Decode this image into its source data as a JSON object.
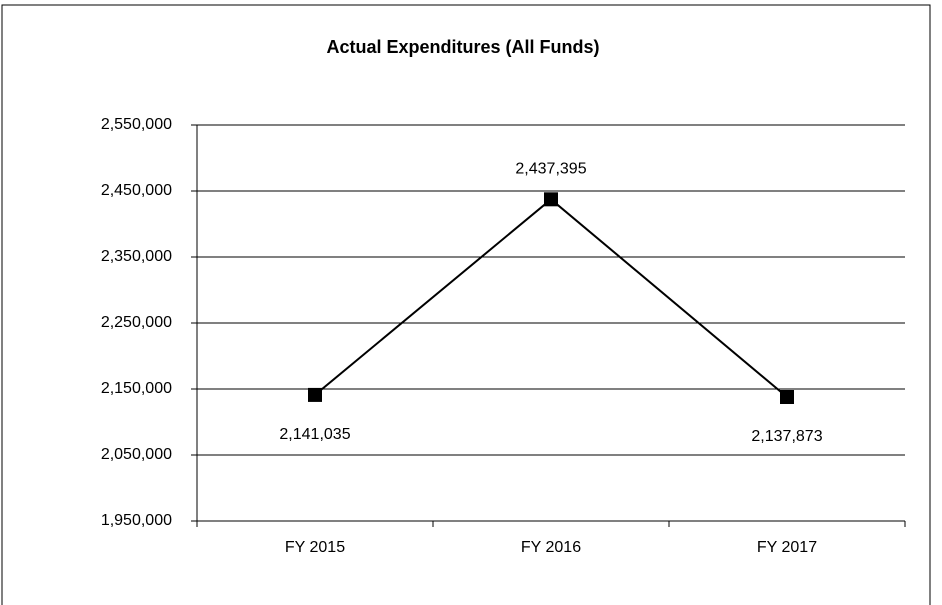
{
  "chart_data": {
    "type": "line",
    "title": "Actual Expenditures (All Funds)",
    "categories": [
      "FY 2015",
      "FY 2016",
      "FY 2017"
    ],
    "values": [
      2141035,
      2437395,
      2137873
    ],
    "value_labels": [
      "2,141,035",
      "2,437,395",
      "2,137,873"
    ],
    "color": "#000000",
    "ylim": [
      1950000,
      2550000
    ],
    "yticks": [
      {
        "value": 1950000,
        "label": "1,950,000"
      },
      {
        "value": 2050000,
        "label": "2,050,000"
      },
      {
        "value": 2150000,
        "label": "2,150,000"
      },
      {
        "value": 2250000,
        "label": "2,250,000"
      },
      {
        "value": 2350000,
        "label": "2,350,000"
      },
      {
        "value": 2450000,
        "label": "2,450,000"
      },
      {
        "value": 2550000,
        "label": "2,550,000"
      }
    ],
    "grid": true
  }
}
